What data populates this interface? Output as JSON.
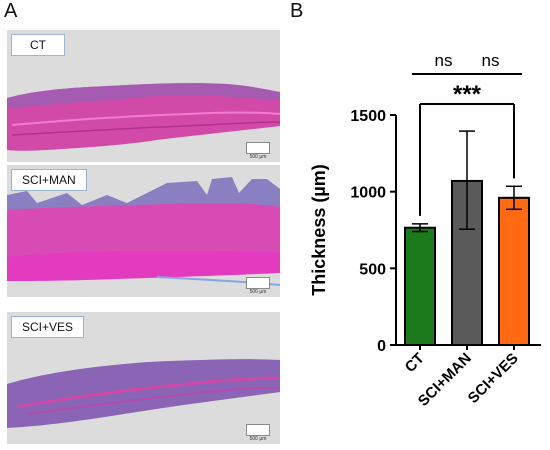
{
  "panels": {
    "a_letter": "A",
    "b_letter": "B"
  },
  "micrographs": [
    {
      "label": "CT",
      "scale": "500 µm"
    },
    {
      "label": "SCI+MAN",
      "scale": "500 µm"
    },
    {
      "label": "SCI+VES",
      "scale": "500 µm"
    }
  ],
  "chart_data": {
    "type": "bar",
    "categories": [
      "CT",
      "SCI+MAN",
      "SCI+VES"
    ],
    "values": [
      765,
      1070,
      960
    ],
    "error": [
      [
        740,
        790
      ],
      [
        755,
        1395
      ],
      [
        885,
        1035
      ]
    ],
    "colors": [
      "#1c7a1c",
      "#5a5a5a",
      "#ff6a13"
    ],
    "ylabel": "Thickness (µm)",
    "ylim": [
      0,
      1500
    ],
    "yticks": [
      0,
      500,
      1000,
      1500
    ],
    "significance": [
      {
        "from": 0,
        "to": 1,
        "label": "ns"
      },
      {
        "from": 1,
        "to": 2,
        "label": "ns"
      },
      {
        "from": 0,
        "to": 2,
        "label": "***"
      }
    ]
  }
}
